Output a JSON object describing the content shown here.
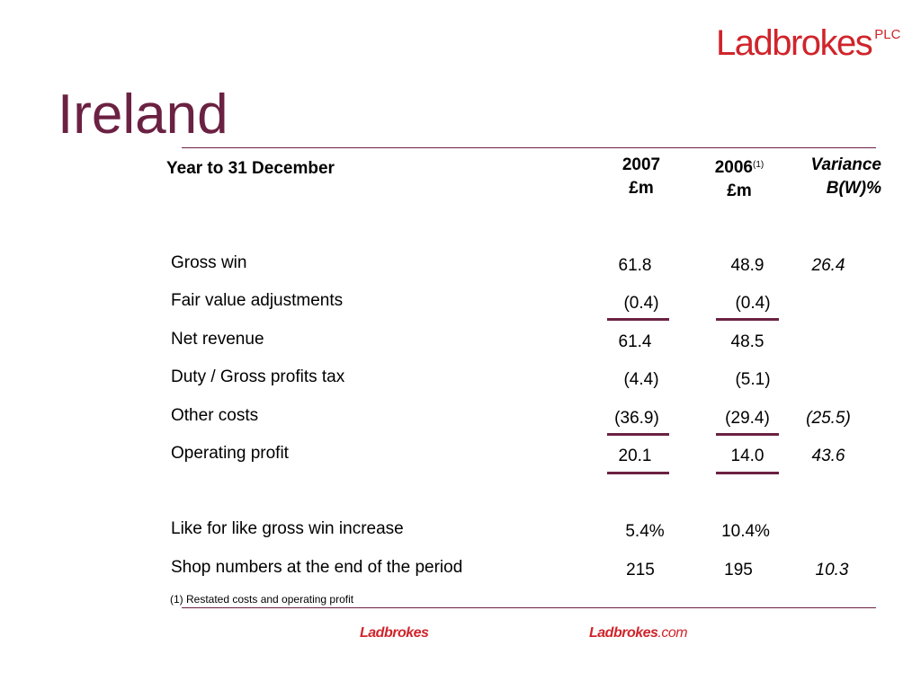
{
  "header": {
    "logo_text": "Ladbrokes",
    "logo_suffix": "PLC",
    "title": "Ireland"
  },
  "table": {
    "row_header": "Year to 31 December",
    "columns": [
      {
        "line1": "2007",
        "line2": "£m",
        "note": ""
      },
      {
        "line1": "2006",
        "line2": "£m",
        "note": "(1)"
      },
      {
        "line1": "Variance",
        "line2": "B(W)%",
        "note": ""
      }
    ],
    "rows": [
      {
        "label": "Gross win",
        "v2007": "61.8",
        "v2006": "48.9",
        "variance": "26.4"
      },
      {
        "label": "Fair value adjustments",
        "v2007": "(0.4)",
        "v2006": "(0.4)",
        "variance": ""
      },
      {
        "label": "Net revenue",
        "v2007": "61.4",
        "v2006": "48.5",
        "variance": ""
      },
      {
        "label": "Duty / Gross profits tax",
        "v2007": "(4.4)",
        "v2006": "(5.1)",
        "variance": ""
      },
      {
        "label": "Other costs",
        "v2007": "(36.9)",
        "v2006": "(29.4)",
        "variance": "(25.5)"
      },
      {
        "label": "Operating profit",
        "v2007": "20.1",
        "v2006": "14.0",
        "variance": "43.6"
      },
      {
        "label": "Like for like gross win increase",
        "v2007": "5.4%",
        "v2006": "10.4%",
        "variance": ""
      },
      {
        "label": "Shop numbers at the end of the period",
        "v2007": "215",
        "v2006": "195",
        "variance": "10.3"
      }
    ]
  },
  "footnote": "(1) Restated costs and operating profit",
  "footer": {
    "brand1": "Ladbrokes",
    "brand2_main": "Ladbrokes",
    "brand2_suffix": ".com"
  },
  "colors": {
    "accent": "#6b2142",
    "brand_red": "#d0242b"
  }
}
